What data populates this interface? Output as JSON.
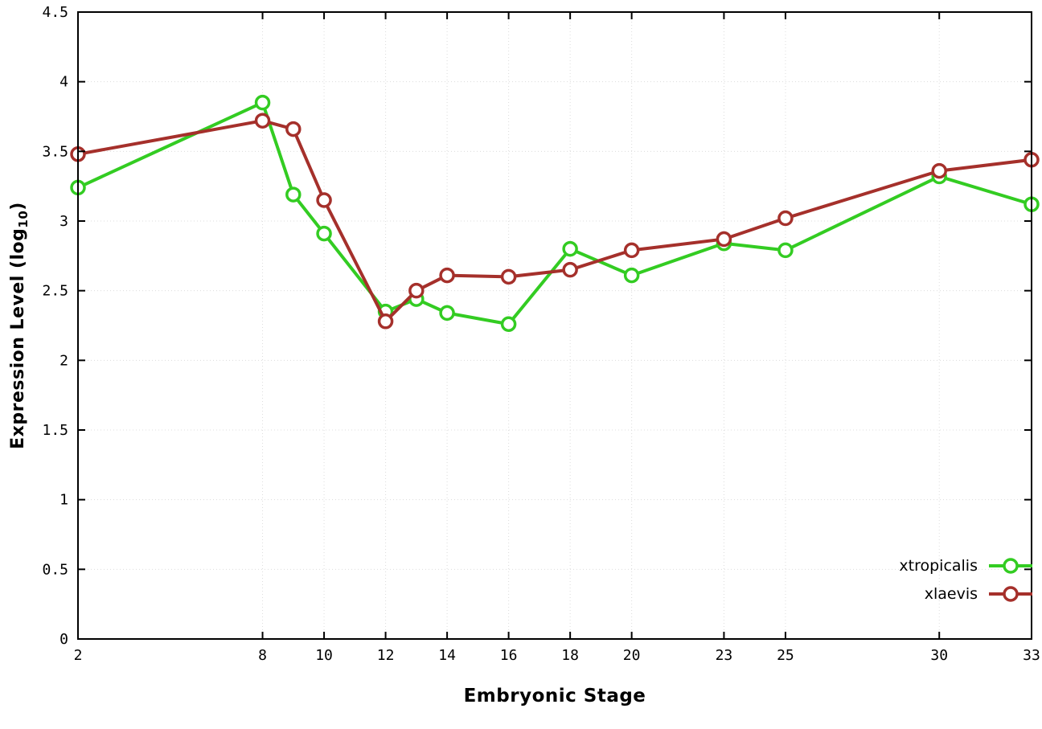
{
  "chart_data": {
    "type": "line",
    "title": "",
    "xlabel": "Embryonic Stage",
    "ylabel_pre": "Expression Level (log",
    "ylabel_sub": "10",
    "ylabel_post": ")",
    "x": [
      2,
      8,
      9,
      10,
      12,
      13,
      14,
      16,
      18,
      20,
      23,
      25,
      30,
      33
    ],
    "series": [
      {
        "name": "xtropicalis",
        "color": "#33cc22",
        "values": [
          3.24,
          3.85,
          3.19,
          2.91,
          2.35,
          2.44,
          2.34,
          2.26,
          2.8,
          2.61,
          2.84,
          2.79,
          3.32,
          3.12
        ]
      },
      {
        "name": "xlaevis",
        "color": "#a5302b",
        "values": [
          3.48,
          3.72,
          3.66,
          3.15,
          2.28,
          2.5,
          2.61,
          2.6,
          2.65,
          2.79,
          2.87,
          3.02,
          3.36,
          3.44
        ]
      }
    ],
    "xlim": [
      2,
      33
    ],
    "ylim": [
      0,
      4.5
    ],
    "xticks": [
      2,
      8,
      10,
      12,
      14,
      16,
      18,
      20,
      23,
      25,
      30,
      33
    ],
    "yticks": [
      0,
      0.5,
      1,
      1.5,
      2,
      2.5,
      3,
      3.5,
      4,
      4.5
    ],
    "grid": true,
    "legend_position": "bottom-right"
  }
}
